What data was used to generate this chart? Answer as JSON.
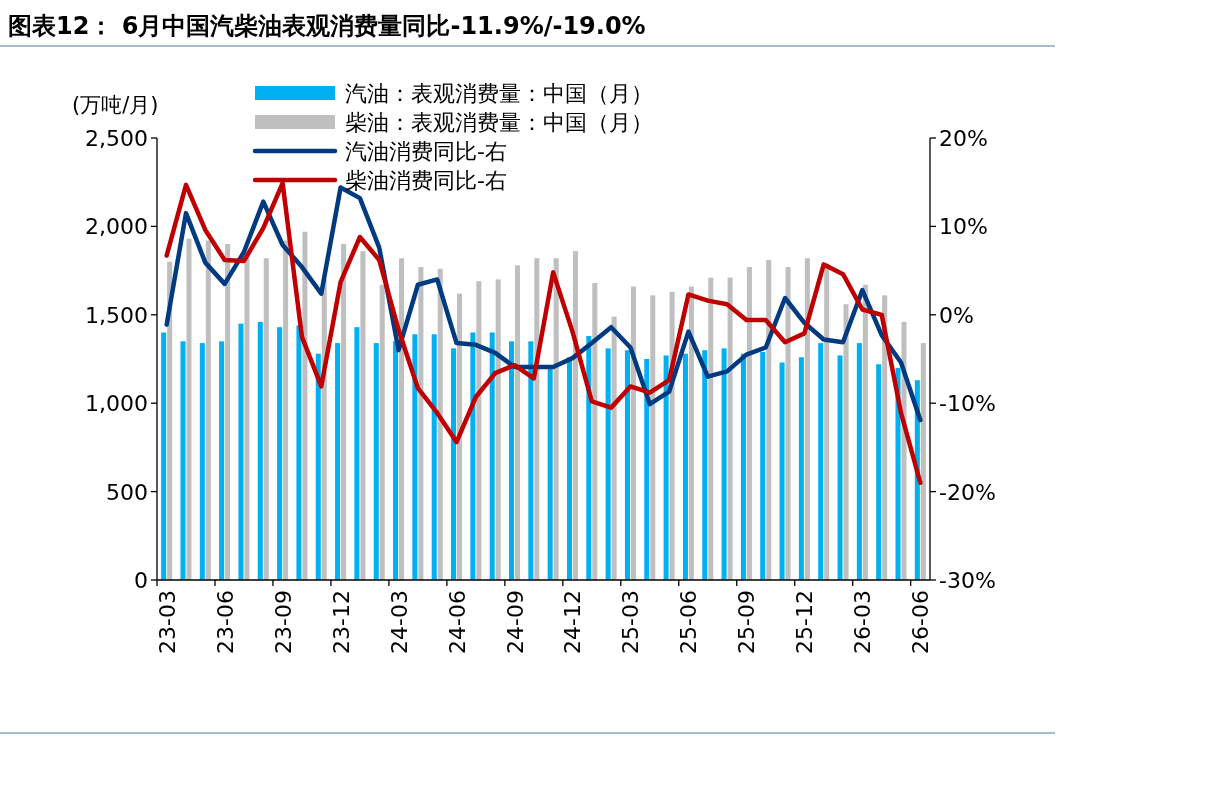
{
  "chart_data": {
    "type": "bar",
    "title": "图表12： 6月中国汽柴油表观消费量同比-11.9%/-19.0%",
    "ylabel": "(万吨/月)",
    "categories": [
      "23-03",
      null,
      null,
      "23-06",
      null,
      null,
      "23-09",
      null,
      null,
      "23-12",
      null,
      null,
      "24-03",
      null,
      null,
      "24-06",
      null,
      null,
      "24-09",
      null,
      null,
      "24-12",
      null,
      null,
      "25-03",
      null,
      null,
      "25-06",
      null,
      null,
      "25-09",
      null,
      null,
      "25-12",
      null,
      null,
      "26-03",
      null,
      null,
      "26-06"
    ],
    "series": [
      {
        "name": "汽油：表观消费量：中国（月）",
        "color": "#00b0f0",
        "values": [
          1400,
          1350,
          1340,
          1350,
          1450,
          1460,
          1430,
          1440,
          1280,
          1340,
          1430,
          1340,
          1350,
          1390,
          1390,
          1310,
          1400,
          1400,
          1350,
          1350,
          1200,
          1260,
          1380,
          1310,
          1300,
          1250,
          1270,
          1280,
          1300,
          1310,
          1280,
          1290,
          1230,
          1260,
          1340,
          1270,
          1340,
          1220,
          1200,
          1130
        ]
      },
      {
        "name": "柴油：表观消费量：中国（月）",
        "color": "#bfbfbf",
        "values": [
          1800,
          1930,
          1920,
          1900,
          1830,
          1820,
          1920,
          1970,
          1700,
          1900,
          1860,
          1670,
          1820,
          1770,
          1760,
          1620,
          1690,
          1700,
          1780,
          1820,
          1820,
          1860,
          1680,
          1490,
          1660,
          1610,
          1630,
          1660,
          1710,
          1710,
          1770,
          1810,
          1770,
          1820,
          1790,
          1560,
          1670,
          1610,
          1460,
          1340
        ]
      },
      {
        "name": "汽油消费同比-右",
        "type": "line",
        "axis": "y2",
        "color": "#003a80",
        "values": [
          -1.1,
          11.5,
          5.9,
          3.5,
          7.1,
          12.8,
          7.9,
          5.4,
          2.4,
          14.4,
          13.2,
          7.6,
          -4.0,
          3.4,
          4.0,
          -3.2,
          -3.4,
          -4.3,
          -5.9,
          -5.9,
          -5.9,
          -4.9,
          -3.2,
          -1.4,
          -3.7,
          -10.1,
          -8.7,
          -1.9,
          -7.0,
          -6.4,
          -4.5,
          -3.7,
          1.9,
          -0.9,
          -2.8,
          -3.1,
          2.8,
          -2.3,
          -5.4,
          -11.9
        ]
      },
      {
        "name": "柴油消费同比-右",
        "type": "line",
        "axis": "y2",
        "color": "#c00000",
        "values": [
          6.7,
          14.7,
          9.6,
          6.2,
          6.1,
          9.8,
          14.9,
          -2.5,
          -8.1,
          3.7,
          8.8,
          6.2,
          -1.7,
          -8.3,
          -11.1,
          -14.4,
          -9.3,
          -6.6,
          -5.7,
          -7.2,
          4.8,
          -1.9,
          -9.8,
          -10.5,
          -8.1,
          -8.8,
          -7.4,
          2.3,
          1.6,
          1.2,
          -0.6,
          -0.6,
          -3.1,
          -2.1,
          5.7,
          4.6,
          0.6,
          0.0,
          -11.1,
          -19.0
        ]
      }
    ],
    "ylim": [
      0,
      2500
    ],
    "yticks": [
      0,
      500,
      {
        "value": 1000,
        "label": "1,000"
      },
      {
        "value": 1500,
        "label": "1,500"
      },
      {
        "value": 2000,
        "label": "2,000"
      },
      {
        "value": 2500,
        "label": "2,500"
      }
    ],
    "y2lim": [
      -30,
      20
    ],
    "y2ticks": [
      {
        "value": -30,
        "label": "-30%"
      },
      {
        "value": -20,
        "label": "-20%"
      },
      {
        "value": -10,
        "label": "-10%"
      },
      {
        "value": 0,
        "label": "0%"
      },
      {
        "value": 10,
        "label": "10%"
      },
      {
        "value": 20,
        "label": "20%"
      }
    ],
    "grid": false,
    "legend": "top"
  }
}
